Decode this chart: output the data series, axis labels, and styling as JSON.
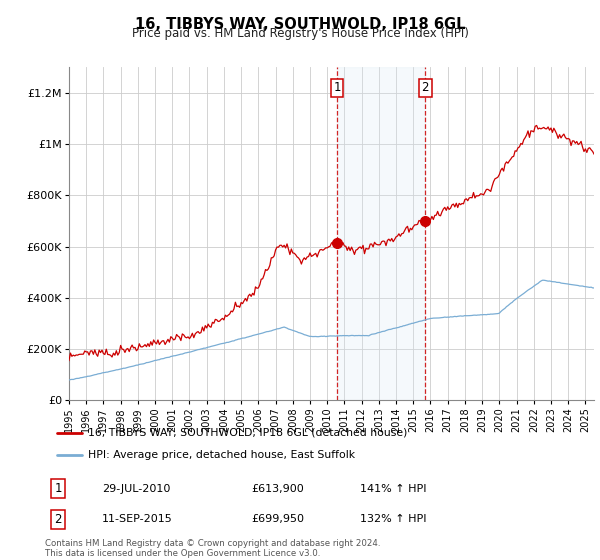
{
  "title": "16, TIBBYS WAY, SOUTHWOLD, IP18 6GL",
  "subtitle": "Price paid vs. HM Land Registry's House Price Index (HPI)",
  "legend_line1": "16, TIBBYS WAY, SOUTHWOLD, IP18 6GL (detached house)",
  "legend_line2": "HPI: Average price, detached house, East Suffolk",
  "footnote": "Contains HM Land Registry data © Crown copyright and database right 2024.\nThis data is licensed under the Open Government Licence v3.0.",
  "sale1_date": "29-JUL-2010",
  "sale1_price": "£613,900",
  "sale1_hpi": "141% ↑ HPI",
  "sale1_x": 2010.57,
  "sale1_y": 613900,
  "sale2_date": "11-SEP-2015",
  "sale2_price": "£699,950",
  "sale2_hpi": "132% ↑ HPI",
  "sale2_x": 2015.7,
  "sale2_y": 699950,
  "red_color": "#cc0000",
  "blue_color": "#7aadd4",
  "shade_color": "#dbeaf5",
  "grid_color": "#cccccc",
  "ylim_max": 1300000,
  "xlim_start": 1995.0,
  "xlim_end": 2025.5,
  "yticks": [
    0,
    200000,
    400000,
    600000,
    800000,
    1000000,
    1200000
  ],
  "ytick_labels": [
    "£0",
    "£200K",
    "£400K",
    "£600K",
    "£800K",
    "£1M",
    "£1.2M"
  ]
}
